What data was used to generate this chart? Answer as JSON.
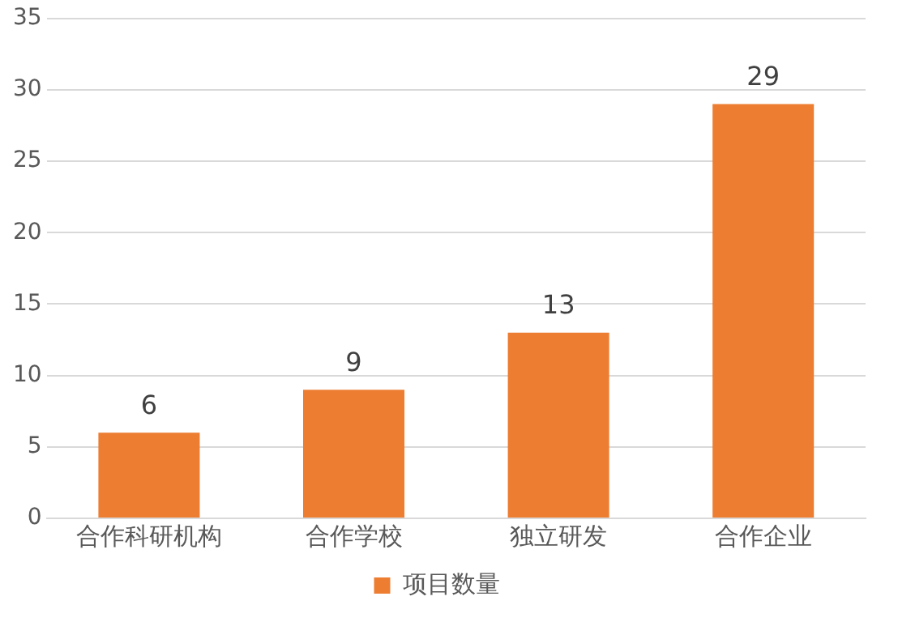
{
  "chart_data": {
    "type": "bar",
    "categories": [
      "合作科研机构",
      "合作学校",
      "独立研发",
      "合作企业"
    ],
    "series": [
      {
        "name": "项目数量",
        "color": "#ed7d31",
        "values": [
          6,
          9,
          13,
          29
        ]
      }
    ],
    "ylim": [
      0,
      35
    ],
    "yticks": [
      0,
      5,
      10,
      15,
      20,
      25,
      30,
      35
    ],
    "grid": "y",
    "legend": "bottom",
    "data_labels": true
  }
}
